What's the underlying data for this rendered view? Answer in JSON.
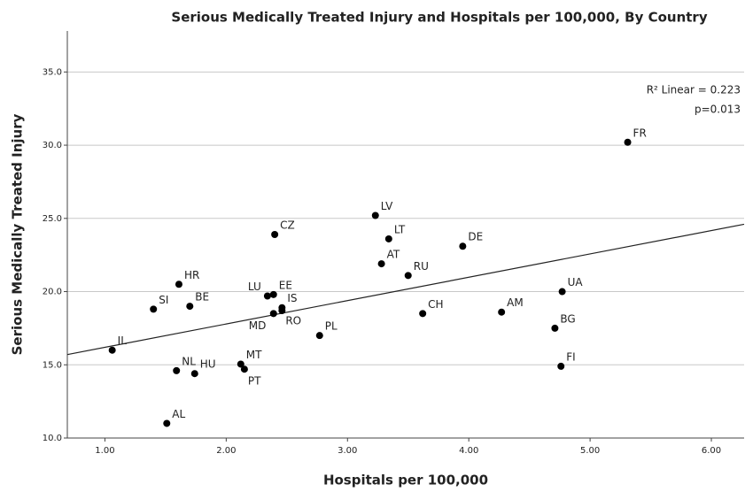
{
  "chart_data": {
    "type": "scatter",
    "title": "Serious Medically Treated Injury and Hospitals per 100,000, By Country",
    "x_label": "Hospitals per 100,000",
    "y_label": "Serious Medically Treated Injury",
    "annotations": [
      "R² Linear = 0.223",
      "p=0.013"
    ],
    "labels": [
      "IL",
      "SI",
      "HR",
      "BE",
      "NL",
      "HU",
      "AL",
      "MT",
      "PT",
      "CZ",
      "LU",
      "EE",
      "IS",
      "MD",
      "RO",
      "PL",
      "LV",
      "LT",
      "AT",
      "RU",
      "CH",
      "DE",
      "AM",
      "UA",
      "BG",
      "FI",
      "FR"
    ],
    "x": [
      1.06,
      1.4,
      1.61,
      1.7,
      1.59,
      1.74,
      1.51,
      2.12,
      2.15,
      2.4,
      2.34,
      2.39,
      2.46,
      2.39,
      2.46,
      2.77,
      3.23,
      3.34,
      3.28,
      3.5,
      3.62,
      3.95,
      4.27,
      4.77,
      4.71,
      4.76,
      5.31
    ],
    "y": [
      16.0,
      18.8,
      20.5,
      19.0,
      14.6,
      14.4,
      11.0,
      15.05,
      14.7,
      23.9,
      19.7,
      19.8,
      18.9,
      18.5,
      18.7,
      17.0,
      25.2,
      23.6,
      21.9,
      21.1,
      18.5,
      23.1,
      18.6,
      20.0,
      17.5,
      14.9,
      30.2
    ],
    "color": "#000000",
    "fit_line": {
      "x": [
        0.69,
        6.27
      ],
      "y": [
        15.7,
        24.6
      ]
    },
    "xlim": [
      0.69,
      6.27
    ],
    "ylim": [
      10,
      37.8
    ],
    "xticks": [
      {
        "value": 1,
        "label": "1.00"
      },
      {
        "value": 2,
        "label": "2.00"
      },
      {
        "value": 3,
        "label": "3.00"
      },
      {
        "value": 4,
        "label": "4.00"
      },
      {
        "value": 5,
        "label": "5.00"
      },
      {
        "value": 6,
        "label": "6.00"
      }
    ],
    "yticks": [
      {
        "value": 10,
        "label": "10.0"
      },
      {
        "value": 15,
        "label": "15.0"
      },
      {
        "value": 20,
        "label": "20.0"
      },
      {
        "value": 25,
        "label": "25.0"
      },
      {
        "value": 30,
        "label": "30.0"
      },
      {
        "value": 35,
        "label": "35.0"
      }
    ],
    "grid": true
  }
}
